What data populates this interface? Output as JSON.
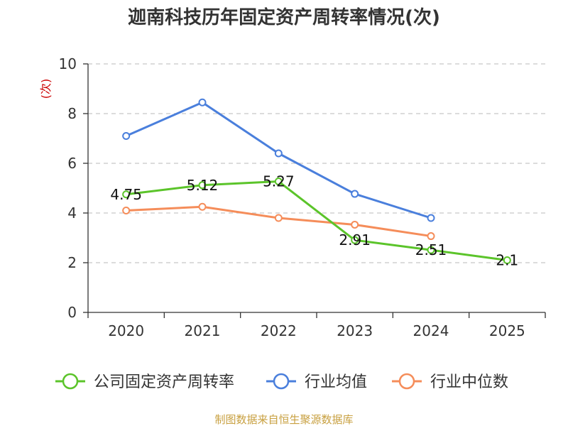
{
  "chart_data": {
    "type": "line",
    "title": "迦南科技历年固定资产周转率情况(次)",
    "ylabel": "(次)",
    "xlabel": "",
    "categories": [
      "2020",
      "2021",
      "2022",
      "2023",
      "2024",
      "2025"
    ],
    "ylim": [
      0,
      10
    ],
    "yticks": [
      0,
      2,
      4,
      6,
      8,
      10
    ],
    "grid": true,
    "legend_position": "bottom",
    "series": [
      {
        "name": "公司固定资产周转率",
        "color": "#5bc42a",
        "values": [
          4.75,
          5.12,
          5.27,
          2.91,
          2.51,
          2.1
        ],
        "labels": [
          "4.75",
          "5.12",
          "5.27",
          "2.91",
          "2.51",
          "2.1"
        ]
      },
      {
        "name": "行业均值",
        "color": "#4a7fdc",
        "values": [
          7.1,
          8.45,
          6.4,
          4.77,
          3.8,
          null
        ]
      },
      {
        "name": "行业中位数",
        "color": "#f58d5a",
        "values": [
          4.1,
          4.25,
          3.8,
          3.53,
          3.07,
          null
        ]
      }
    ],
    "source": "制图数据来自恒生聚源数据库"
  }
}
